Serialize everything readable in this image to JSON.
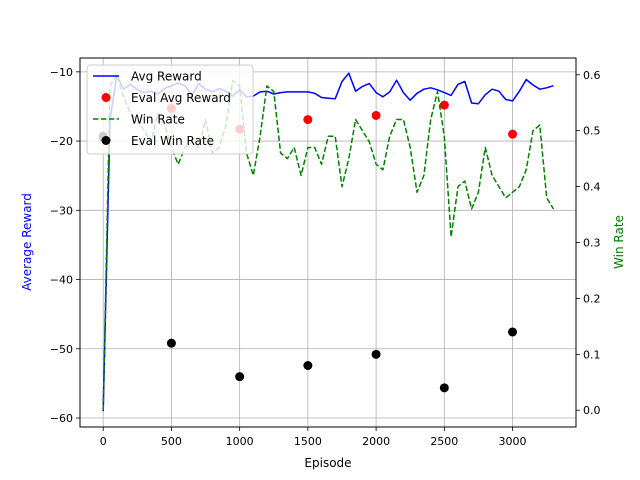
{
  "chart_data": {
    "type": "line",
    "xlabel": "Episode",
    "ylabel_left": "Average Reward",
    "ylabel_right": "Win Rate",
    "xlim": [
      -170,
      3465
    ],
    "ylim_left": [
      -61.3,
      -8.0
    ],
    "ylim_right": [
      -0.03,
      0.63
    ],
    "x_ticks": [
      0,
      500,
      1000,
      1500,
      2000,
      2500,
      3000
    ],
    "y_left_ticks": [
      -60,
      -50,
      -40,
      -30,
      -20,
      -10
    ],
    "y_right_ticks": [
      0.0,
      0.1,
      0.2,
      0.3,
      0.4,
      0.5,
      0.6
    ],
    "x_tick_labels": [
      "0",
      "500",
      "1000",
      "1500",
      "2000",
      "2500",
      "3000"
    ],
    "y_left_tick_labels": [
      "−60",
      "−50",
      "−40",
      "−30",
      "−20",
      "−10"
    ],
    "y_right_tick_labels": [
      "0.0",
      "0.1",
      "0.2",
      "0.3",
      "0.4",
      "0.5",
      "0.6"
    ],
    "grid": true,
    "legend_position": "top-left",
    "legend": [
      "Avg Reward",
      "Eval Avg Reward",
      "Win Rate",
      "Eval Win Rate"
    ],
    "colors": {
      "avg_reward": "#0000ff",
      "eval_avg_reward": "#ff0000",
      "win_rate": "#008000",
      "eval_win_rate": "#000000",
      "grid": "#b0b0b0"
    },
    "series": [
      {
        "name": "Avg Reward",
        "axis": "left",
        "style": "solid",
        "x": [
          0,
          50,
          100,
          150,
          200,
          250,
          300,
          350,
          400,
          450,
          500,
          550,
          600,
          650,
          700,
          750,
          800,
          850,
          900,
          950,
          1000,
          1050,
          1100,
          1150,
          1200,
          1250,
          1300,
          1350,
          1400,
          1450,
          1500,
          1550,
          1600,
          1650,
          1700,
          1750,
          1800,
          1850,
          1900,
          1950,
          2000,
          2050,
          2100,
          2150,
          2200,
          2250,
          2300,
          2350,
          2400,
          2450,
          2500,
          2550,
          2600,
          2650,
          2700,
          2750,
          2800,
          2850,
          2900,
          2950,
          3000,
          3050,
          3100,
          3150,
          3200,
          3250,
          3300
        ],
        "y": [
          -59,
          -17,
          -10.5,
          -12.5,
          -11.8,
          -12.6,
          -13.0,
          -12.8,
          -13.2,
          -12.4,
          -12.0,
          -11.6,
          -12.0,
          -13.4,
          -11.7,
          -12.5,
          -12.9,
          -12.4,
          -12.8,
          -13.5,
          -12.6,
          -13.6,
          -13.5,
          -12.9,
          -12.8,
          -13.2,
          -13.0,
          -12.9,
          -12.9,
          -12.9,
          -12.9,
          -13.1,
          -13.7,
          -13.8,
          -13.9,
          -11.4,
          -10.2,
          -12.8,
          -12.1,
          -11.7,
          -13.0,
          -13.6,
          -12.9,
          -11.2,
          -13.0,
          -14.1,
          -13.1,
          -12.5,
          -12.3,
          -12.6,
          -13.0,
          -13.4,
          -11.8,
          -11.4,
          -14.5,
          -14.6,
          -13.3,
          -12.5,
          -12.8,
          -14.0,
          -14.2,
          -12.8,
          -11.1,
          -11.9,
          -12.5,
          -12.3,
          -12.0
        ]
      },
      {
        "name": "Eval Avg Reward",
        "axis": "left",
        "style": "marker",
        "x": [
          0,
          500,
          1000,
          1500,
          2000,
          2500,
          3000
        ],
        "y": [
          -19.5,
          -15.3,
          -18.3,
          -16.9,
          -16.3,
          -14.8,
          -19.0
        ]
      },
      {
        "name": "Win Rate",
        "axis": "right",
        "style": "dashed",
        "x": [
          0,
          50,
          100,
          150,
          200,
          250,
          300,
          350,
          400,
          450,
          500,
          550,
          600,
          650,
          700,
          750,
          800,
          850,
          900,
          950,
          1000,
          1050,
          1100,
          1150,
          1200,
          1250,
          1300,
          1350,
          1400,
          1450,
          1500,
          1550,
          1600,
          1650,
          1700,
          1750,
          1800,
          1850,
          1900,
          1950,
          2000,
          2050,
          2100,
          2150,
          2200,
          2250,
          2300,
          2350,
          2400,
          2450,
          2500,
          2550,
          2600,
          2650,
          2700,
          2750,
          2800,
          2850,
          2900,
          2950,
          3000,
          3050,
          3100,
          3150,
          3200,
          3250,
          3300
        ],
        "y": [
          0.0,
          0.58,
          0.6,
          0.56,
          0.53,
          0.52,
          0.5,
          0.48,
          0.53,
          0.51,
          0.47,
          0.44,
          0.47,
          0.48,
          0.47,
          0.52,
          0.46,
          0.47,
          0.51,
          0.59,
          0.58,
          0.46,
          0.42,
          0.49,
          0.58,
          0.57,
          0.46,
          0.45,
          0.47,
          0.42,
          0.47,
          0.47,
          0.44,
          0.49,
          0.49,
          0.4,
          0.45,
          0.52,
          0.5,
          0.48,
          0.44,
          0.43,
          0.49,
          0.52,
          0.52,
          0.47,
          0.39,
          0.42,
          0.52,
          0.57,
          0.49,
          0.31,
          0.4,
          0.41,
          0.36,
          0.39,
          0.47,
          0.42,
          0.4,
          0.38,
          0.39,
          0.4,
          0.43,
          0.5,
          0.51,
          0.38,
          0.36
        ]
      },
      {
        "name": "Eval Win Rate",
        "axis": "right",
        "style": "marker",
        "x": [
          0,
          500,
          1000,
          1500,
          2000,
          2500,
          3000
        ],
        "y": [
          0.49,
          0.12,
          0.06,
          0.08,
          0.1,
          0.04,
          0.14
        ]
      }
    ]
  }
}
